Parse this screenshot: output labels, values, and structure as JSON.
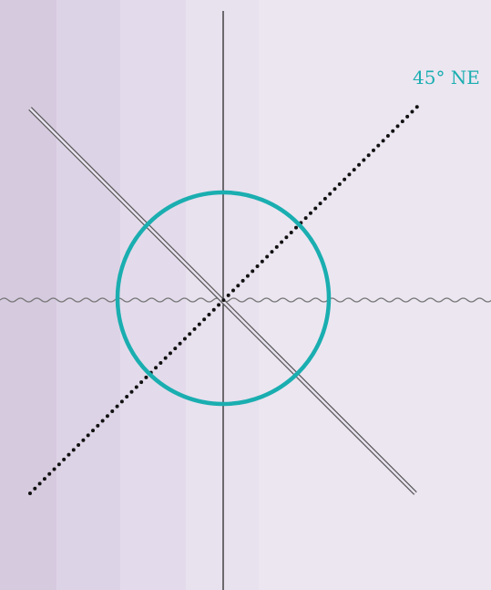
{
  "label": {
    "text": "45° NE",
    "color": "#1aaeb0"
  },
  "colors": {
    "background_bands": [
      "#d6cadf",
      "#ddd3e6",
      "#e3dbeb",
      "#e8e1ee",
      "#ece6f1"
    ],
    "axis_line": "#1a1a1a",
    "dotted_diagonal": "#111111",
    "double_diagonal": "#555555",
    "wavy_horizontal": "#777777",
    "circle": "#1aaeb0"
  },
  "elements": {
    "vertical_axis": "solid",
    "horizontal_axis": "wavy",
    "ne_diagonal": "dotted",
    "nw_diagonal": "double",
    "circle": "outline"
  }
}
